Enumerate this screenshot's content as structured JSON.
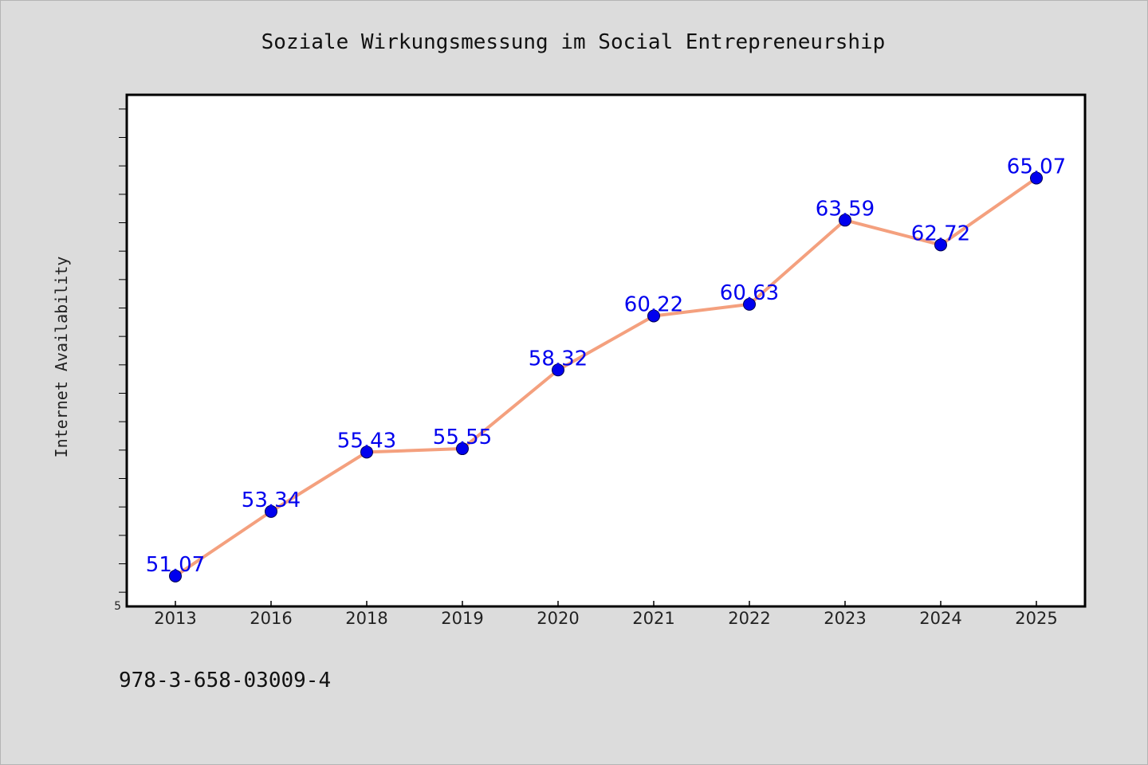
{
  "chart_data": {
    "type": "line",
    "title": "Soziale Wirkungsmessung im Social Entrepreneurship",
    "xlabel": "",
    "ylabel": "Internet Availability",
    "categories": [
      "2013",
      "2016",
      "2018",
      "2019",
      "2020",
      "2021",
      "2022",
      "2023",
      "2024",
      "2025"
    ],
    "series": [
      {
        "values": [
          51.07,
          53.34,
          55.43,
          55.55,
          58.32,
          60.22,
          60.63,
          63.59,
          62.72,
          65.07
        ],
        "data_labels": [
          "51.07",
          "53.34",
          "55.43",
          "55.55",
          "58.32",
          "60.22",
          "60.63",
          "63.59",
          "62.72",
          "65.07"
        ],
        "line_color": "#f4a07e",
        "marker_color": "#0000ee"
      }
    ],
    "ylim": [
      50.0,
      68.0
    ],
    "y_tick_label": "5",
    "grid": false,
    "legend": "none",
    "label_color": "#0000ee",
    "plot_background": "#ffffff",
    "figure_background": "#dcdcdc"
  },
  "footer": {
    "isbn": "978-3-658-03009-4"
  }
}
